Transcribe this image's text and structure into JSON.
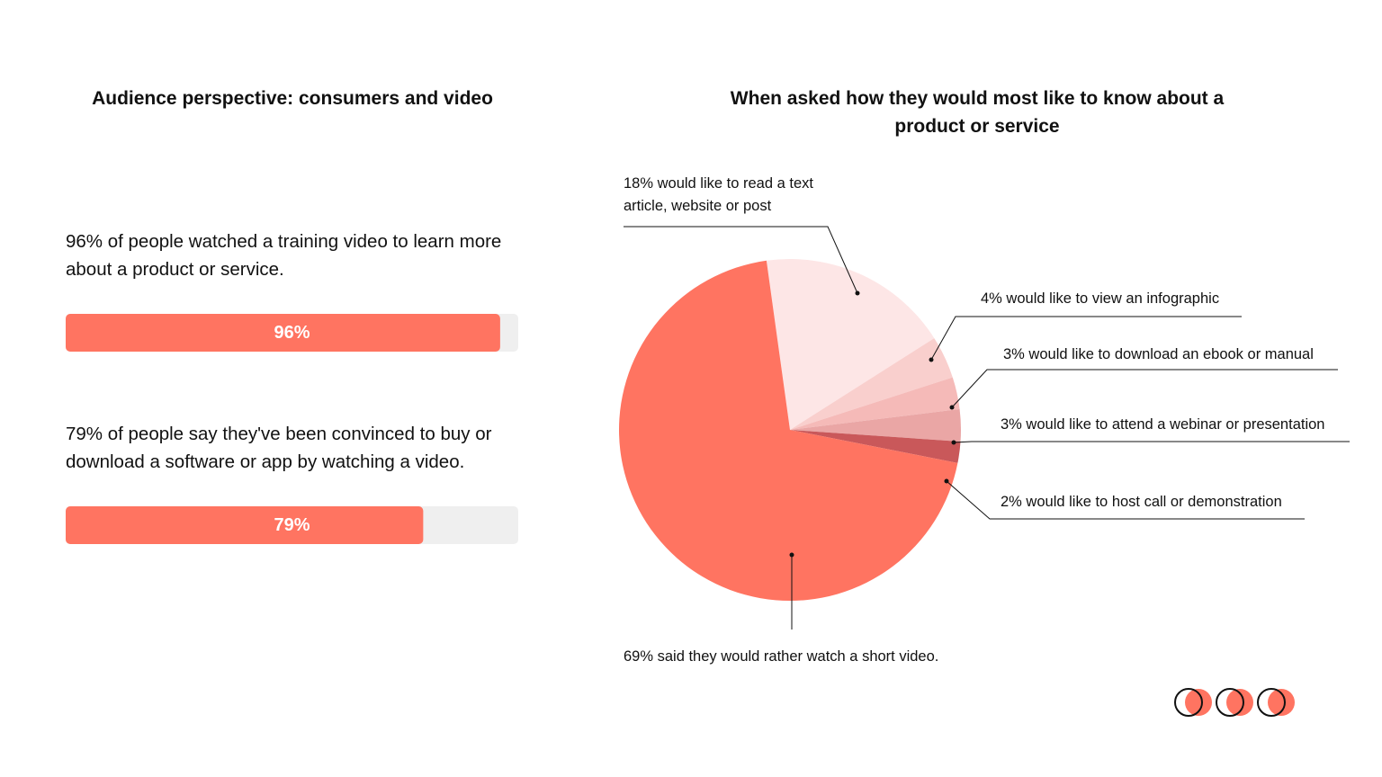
{
  "chart_data": [
    {
      "type": "bar",
      "title": "Audience perspective: consumers and video",
      "categories": [
        "96% of people watched a training video to learn more about a product or service.",
        "79% of people say they've been convinced to buy or download a software or app by watching a video."
      ],
      "values": [
        96,
        79
      ],
      "value_labels": [
        "96%",
        "79%"
      ],
      "xlim": [
        0,
        100
      ],
      "color": "#ff7461",
      "track_color": "#efefef"
    },
    {
      "type": "pie",
      "title": "When asked how they would most like to know about a product or service",
      "categories": [
        "18% would like to read a text article, website or post",
        "4% would like to view an infographic",
        "3% would like to download an ebook or manual",
        "3% would like to attend a webinar or presentation",
        "2% would like to host call or demonstration",
        "69% said they would rather watch a short video."
      ],
      "values": [
        18,
        4,
        3,
        3,
        2,
        69
      ],
      "colors": [
        "#fde6e6",
        "#f9cfcd",
        "#f5bab8",
        "#eaa6a5",
        "#c9585a",
        "#ff7461"
      ]
    }
  ]
}
